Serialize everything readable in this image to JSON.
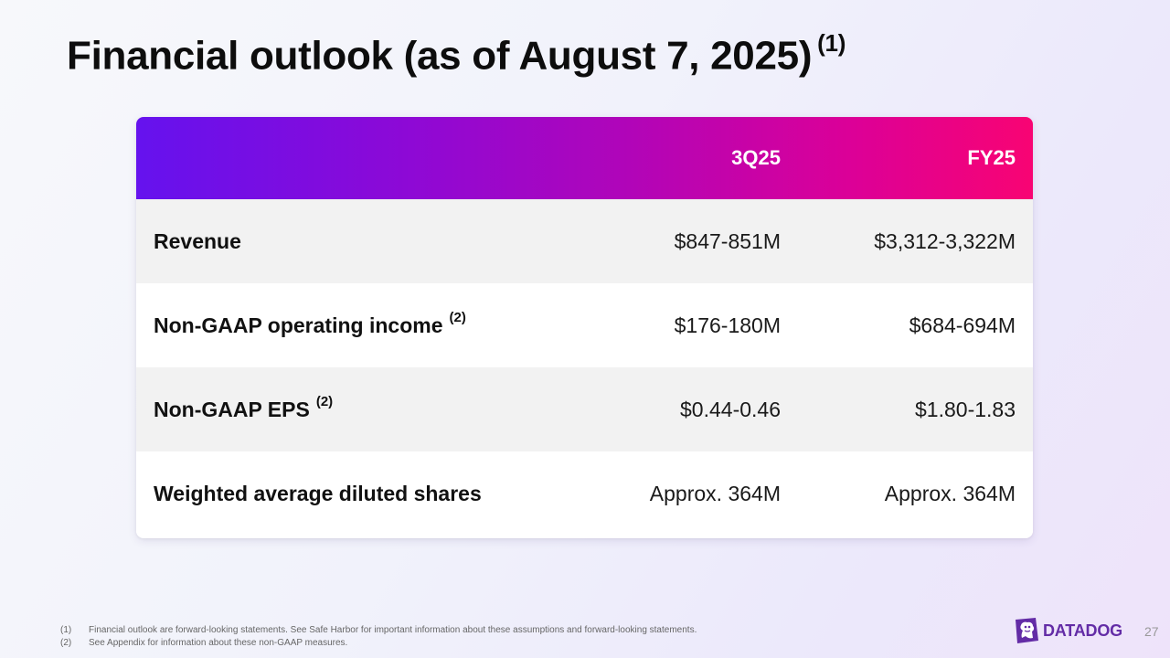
{
  "slide": {
    "title": "Financial outlook (as of August 7, 2025)",
    "title_note": "(1)",
    "page_number": "27"
  },
  "table": {
    "columns": [
      "",
      "3Q25",
      "FY25"
    ],
    "rows": [
      {
        "label": "Revenue",
        "note": "",
        "q3": "$847-851M",
        "fy": "$3,312-3,322M"
      },
      {
        "label": "Non-GAAP operating income",
        "note": "(2)",
        "q3": "$176-180M",
        "fy": "$684-694M"
      },
      {
        "label": "Non-GAAP EPS",
        "note": "(2)",
        "q3": "$0.44-0.46",
        "fy": "$1.80-1.83"
      },
      {
        "label": "Weighted average diluted shares",
        "note": "",
        "q3": "Approx. 364M",
        "fy": "Approx. 364M"
      }
    ]
  },
  "footnotes": [
    {
      "num": "(1)",
      "text": "Financial outlook are forward-looking statements.  See Safe Harbor for important information about these assumptions and forward-looking statements."
    },
    {
      "num": "(2)",
      "text": "See Appendix for information about these non-GAAP measures."
    }
  ],
  "brand": {
    "name": "DATADOG",
    "icon": "datadog-dog-icon",
    "color": "#632ca6"
  },
  "colors": {
    "header_gradient_start": "#6512ee",
    "header_gradient_end": "#f80473"
  }
}
